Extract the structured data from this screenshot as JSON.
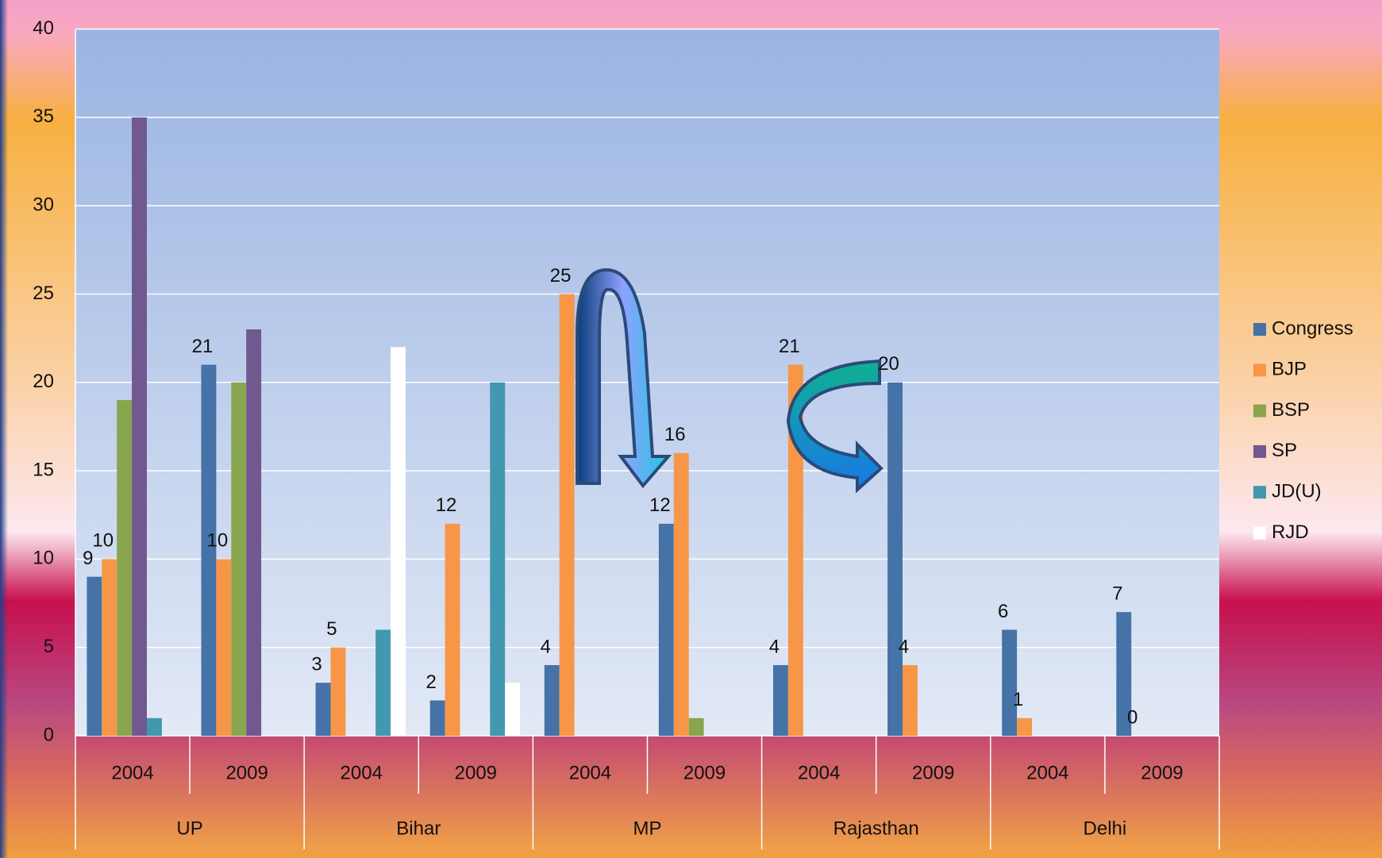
{
  "chart_data": {
    "type": "bar",
    "categories": [
      "2004",
      "2009",
      "2004",
      "2009",
      "2004",
      "2009",
      "2004",
      "2009",
      "2004",
      "2009"
    ],
    "group_labels": [
      "UP",
      "Bihar",
      "MP",
      "Rajasthan",
      "Delhi"
    ],
    "series": [
      {
        "name": "Congress",
        "color": "#4572a7",
        "show_labels": true,
        "values": [
          9,
          21,
          3,
          2,
          4,
          12,
          4,
          20,
          6,
          7
        ]
      },
      {
        "name": "BJP",
        "color": "#f79646",
        "show_labels": true,
        "values": [
          10,
          10,
          5,
          12,
          25,
          16,
          21,
          4,
          1,
          0
        ]
      },
      {
        "name": "BSP",
        "color": "#89a54e",
        "values": [
          19,
          20,
          null,
          null,
          null,
          1,
          null,
          null,
          null,
          null
        ]
      },
      {
        "name": "SP",
        "color": "#71588f",
        "values": [
          35,
          23,
          null,
          null,
          null,
          null,
          null,
          null,
          null,
          null
        ]
      },
      {
        "name": "JD(U)",
        "color": "#4198af",
        "values": [
          1,
          null,
          6,
          20,
          null,
          null,
          null,
          null,
          null,
          null
        ]
      },
      {
        "name": "RJD",
        "color": "#ffffff",
        "values": [
          null,
          null,
          22,
          3,
          null,
          null,
          null,
          null,
          null,
          null
        ]
      }
    ],
    "ylim": [
      0,
      40
    ],
    "yticks": [
      0,
      5,
      10,
      15,
      20,
      25,
      30,
      35,
      40
    ],
    "grid": true,
    "legend": "right"
  }
}
